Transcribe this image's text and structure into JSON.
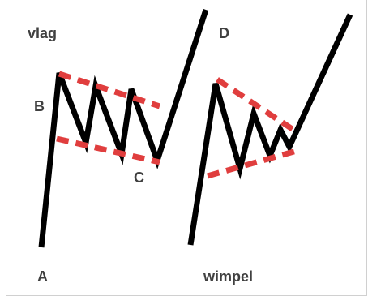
{
  "labels": {
    "vlag": "vlag",
    "b": "B",
    "a": "A",
    "c": "C",
    "d": "D",
    "wimpel": "wimpel"
  },
  "colors": {
    "price_line": "#000000",
    "trend_lines": "#e03e3e",
    "text": "#404040"
  }
}
